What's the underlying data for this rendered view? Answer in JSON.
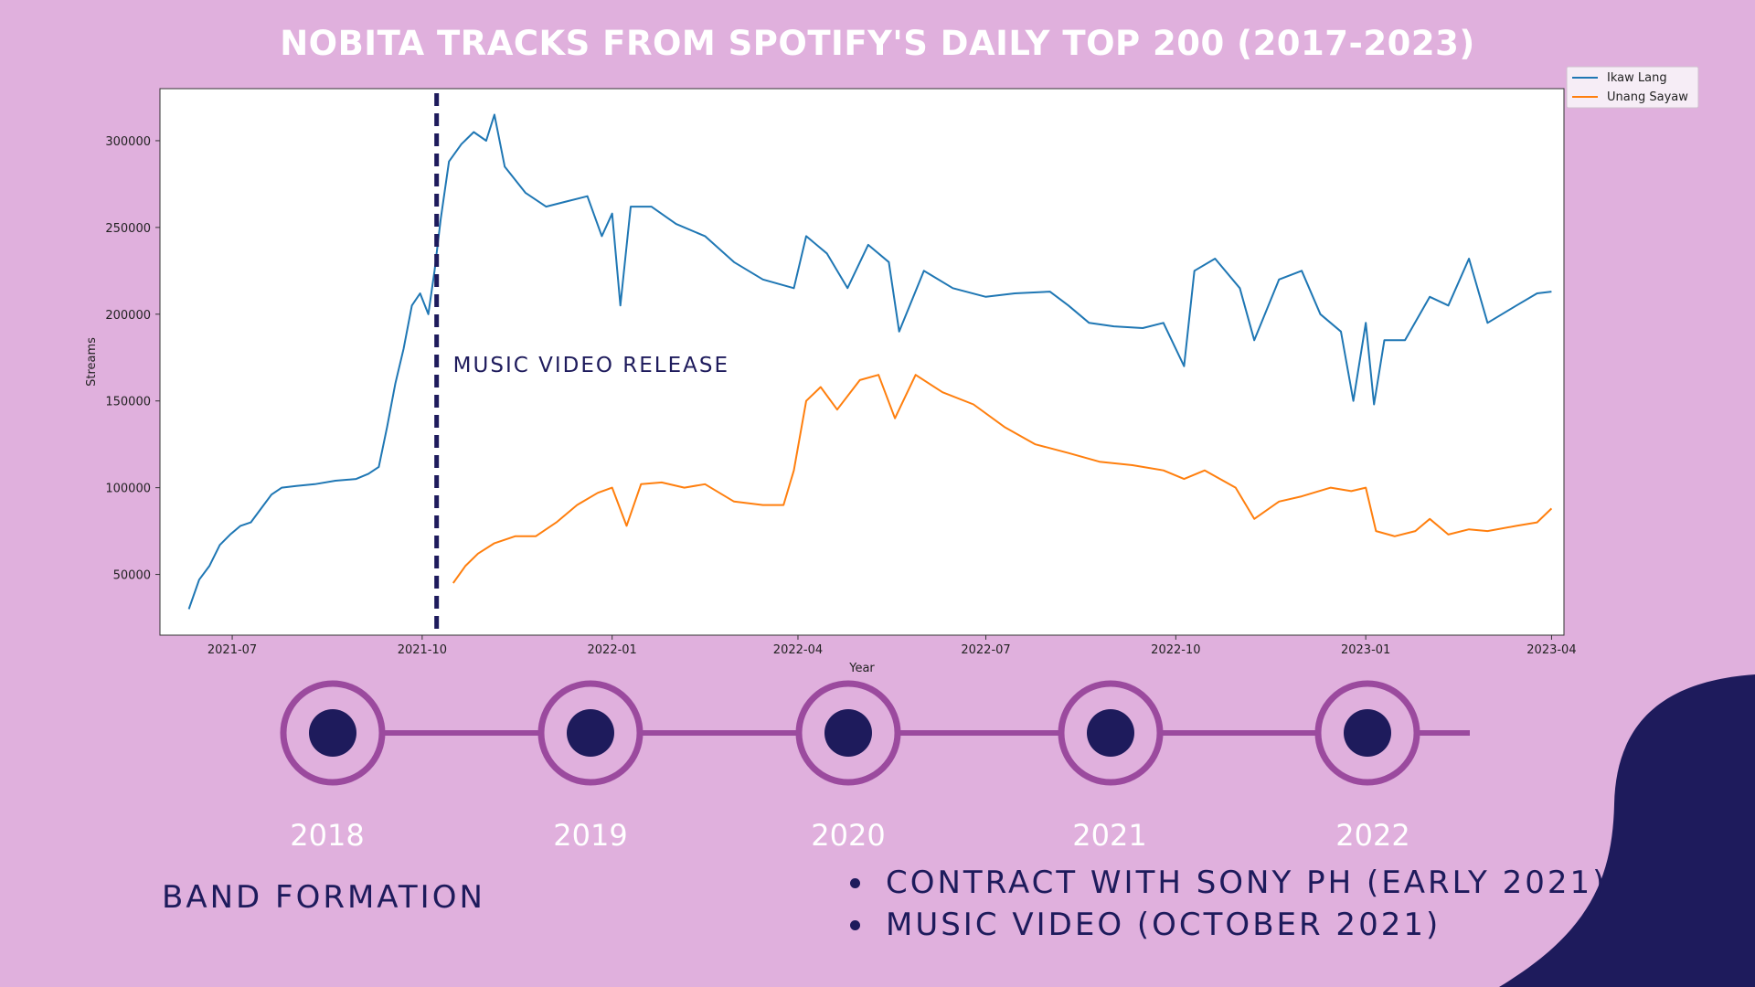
{
  "title": "NOBITA TRACKS FROM SPOTIFY'S DAILY TOP 200 (2017-2023)",
  "colors": {
    "background": "#e0b0dd",
    "navy": "#1e1b5c",
    "timeline_purple": "#9b4a9e",
    "ikaw_lang": "#1f77b4",
    "unang_sayaw": "#ff7f0e"
  },
  "chart_data": {
    "type": "line",
    "xlabel": "Year",
    "ylabel": "Streams",
    "xlim": [
      "2021-05-27",
      "2023-04-07"
    ],
    "ylim": [
      15000,
      330000
    ],
    "x_ticks": [
      "2021-07",
      "2021-10",
      "2022-01",
      "2022-04",
      "2022-07",
      "2022-10",
      "2023-01",
      "2023-04"
    ],
    "y_ticks": [
      "50000",
      "100000",
      "150000",
      "200000",
      "250000",
      "300000"
    ],
    "legend_position": "top-right, outside plot",
    "grid": false,
    "annotation": {
      "label": "MUSIC VIDEO RELEASE",
      "x": "2021-10-08",
      "style": "dashed vertical line"
    },
    "series": [
      {
        "name": "Ikaw Lang",
        "color": "#1f77b4",
        "points": [
          [
            "2021-06-10",
            30000
          ],
          [
            "2021-06-15",
            47000
          ],
          [
            "2021-06-20",
            55000
          ],
          [
            "2021-06-25",
            67000
          ],
          [
            "2021-06-30",
            73000
          ],
          [
            "2021-07-05",
            78000
          ],
          [
            "2021-07-10",
            80000
          ],
          [
            "2021-07-15",
            88000
          ],
          [
            "2021-07-20",
            96000
          ],
          [
            "2021-07-25",
            100000
          ],
          [
            "2021-08-01",
            101000
          ],
          [
            "2021-08-10",
            102000
          ],
          [
            "2021-08-20",
            104000
          ],
          [
            "2021-08-30",
            105000
          ],
          [
            "2021-09-05",
            108000
          ],
          [
            "2021-09-10",
            112000
          ],
          [
            "2021-09-14",
            135000
          ],
          [
            "2021-09-18",
            160000
          ],
          [
            "2021-09-22",
            180000
          ],
          [
            "2021-09-26",
            205000
          ],
          [
            "2021-09-30",
            212000
          ],
          [
            "2021-10-04",
            200000
          ],
          [
            "2021-10-07",
            225000
          ],
          [
            "2021-10-10",
            255000
          ],
          [
            "2021-10-14",
            288000
          ],
          [
            "2021-10-20",
            298000
          ],
          [
            "2021-10-26",
            305000
          ],
          [
            "2021-11-01",
            300000
          ],
          [
            "2021-11-05",
            315000
          ],
          [
            "2021-11-10",
            285000
          ],
          [
            "2021-11-20",
            270000
          ],
          [
            "2021-11-30",
            262000
          ],
          [
            "2021-12-10",
            265000
          ],
          [
            "2021-12-20",
            268000
          ],
          [
            "2021-12-27",
            245000
          ],
          [
            "2022-01-01",
            258000
          ],
          [
            "2022-01-05",
            205000
          ],
          [
            "2022-01-10",
            262000
          ],
          [
            "2022-01-20",
            262000
          ],
          [
            "2022-02-01",
            252000
          ],
          [
            "2022-02-15",
            245000
          ],
          [
            "2022-03-01",
            230000
          ],
          [
            "2022-03-15",
            220000
          ],
          [
            "2022-03-30",
            215000
          ],
          [
            "2022-04-05",
            245000
          ],
          [
            "2022-04-15",
            235000
          ],
          [
            "2022-04-25",
            215000
          ],
          [
            "2022-05-05",
            240000
          ],
          [
            "2022-05-15",
            230000
          ],
          [
            "2022-05-20",
            190000
          ],
          [
            "2022-06-01",
            225000
          ],
          [
            "2022-06-15",
            215000
          ],
          [
            "2022-07-01",
            210000
          ],
          [
            "2022-07-15",
            212000
          ],
          [
            "2022-08-01",
            213000
          ],
          [
            "2022-08-10",
            205000
          ],
          [
            "2022-08-20",
            195000
          ],
          [
            "2022-09-01",
            193000
          ],
          [
            "2022-09-15",
            192000
          ],
          [
            "2022-09-25",
            195000
          ],
          [
            "2022-10-05",
            170000
          ],
          [
            "2022-10-10",
            225000
          ],
          [
            "2022-10-20",
            232000
          ],
          [
            "2022-11-01",
            215000
          ],
          [
            "2022-11-08",
            185000
          ],
          [
            "2022-11-20",
            220000
          ],
          [
            "2022-12-01",
            225000
          ],
          [
            "2022-12-10",
            200000
          ],
          [
            "2022-12-20",
            190000
          ],
          [
            "2022-12-26",
            150000
          ],
          [
            "2023-01-01",
            195000
          ],
          [
            "2023-01-05",
            148000
          ],
          [
            "2023-01-10",
            185000
          ],
          [
            "2023-01-20",
            185000
          ],
          [
            "2023-02-01",
            210000
          ],
          [
            "2023-02-10",
            205000
          ],
          [
            "2023-02-20",
            232000
          ],
          [
            "2023-03-01",
            195000
          ],
          [
            "2023-03-15",
            205000
          ],
          [
            "2023-03-25",
            212000
          ],
          [
            "2023-04-01",
            213000
          ]
        ]
      },
      {
        "name": "Unang Sayaw",
        "color": "#ff7f0e",
        "points": [
          [
            "2021-10-16",
            45000
          ],
          [
            "2021-10-22",
            55000
          ],
          [
            "2021-10-28",
            62000
          ],
          [
            "2021-11-05",
            68000
          ],
          [
            "2021-11-15",
            72000
          ],
          [
            "2021-11-25",
            72000
          ],
          [
            "2021-12-05",
            80000
          ],
          [
            "2021-12-15",
            90000
          ],
          [
            "2021-12-25",
            97000
          ],
          [
            "2022-01-01",
            100000
          ],
          [
            "2022-01-08",
            78000
          ],
          [
            "2022-01-15",
            102000
          ],
          [
            "2022-01-25",
            103000
          ],
          [
            "2022-02-05",
            100000
          ],
          [
            "2022-02-15",
            102000
          ],
          [
            "2022-03-01",
            92000
          ],
          [
            "2022-03-15",
            90000
          ],
          [
            "2022-03-25",
            90000
          ],
          [
            "2022-03-30",
            110000
          ],
          [
            "2022-04-05",
            150000
          ],
          [
            "2022-04-12",
            158000
          ],
          [
            "2022-04-20",
            145000
          ],
          [
            "2022-05-01",
            162000
          ],
          [
            "2022-05-10",
            165000
          ],
          [
            "2022-05-18",
            140000
          ],
          [
            "2022-05-28",
            165000
          ],
          [
            "2022-06-10",
            155000
          ],
          [
            "2022-06-25",
            148000
          ],
          [
            "2022-07-10",
            135000
          ],
          [
            "2022-07-25",
            125000
          ],
          [
            "2022-08-10",
            120000
          ],
          [
            "2022-08-25",
            115000
          ],
          [
            "2022-09-10",
            113000
          ],
          [
            "2022-09-25",
            110000
          ],
          [
            "2022-10-05",
            105000
          ],
          [
            "2022-10-15",
            110000
          ],
          [
            "2022-10-30",
            100000
          ],
          [
            "2022-11-08",
            82000
          ],
          [
            "2022-11-20",
            92000
          ],
          [
            "2022-12-01",
            95000
          ],
          [
            "2022-12-15",
            100000
          ],
          [
            "2022-12-25",
            98000
          ],
          [
            "2023-01-01",
            100000
          ],
          [
            "2023-01-06",
            75000
          ],
          [
            "2023-01-15",
            72000
          ],
          [
            "2023-01-25",
            75000
          ],
          [
            "2023-02-01",
            82000
          ],
          [
            "2023-02-10",
            73000
          ],
          [
            "2023-02-20",
            76000
          ],
          [
            "2023-03-01",
            75000
          ],
          [
            "2023-03-15",
            78000
          ],
          [
            "2023-03-25",
            80000
          ],
          [
            "2023-04-01",
            88000
          ]
        ]
      }
    ]
  },
  "timeline": {
    "years": [
      "2018",
      "2019",
      "2020",
      "2021",
      "2022"
    ],
    "band_formation": "BAND FORMATION",
    "notes": [
      "CONTRACT WITH SONY PH (EARLY 2021)",
      "MUSIC VIDEO (OCTOBER 2021)"
    ]
  }
}
